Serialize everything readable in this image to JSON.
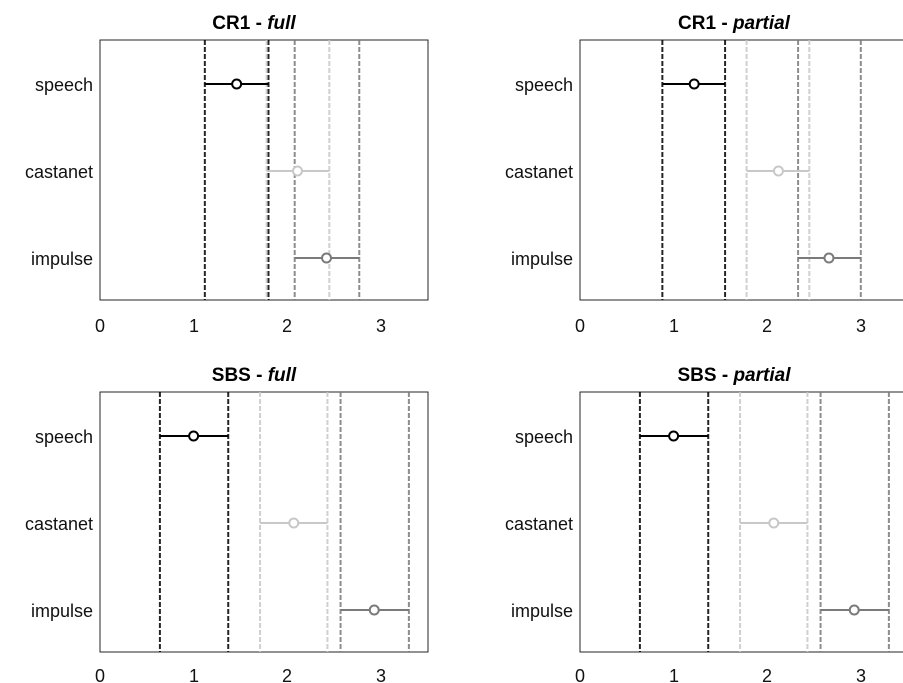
{
  "chart_data": [
    {
      "type": "errorbar",
      "title": {
        "prefix": "CR1 - ",
        "italic": "full"
      },
      "categories": [
        "speech",
        "castanet",
        "impulse"
      ],
      "series": [
        {
          "category": "speech",
          "mean": 1.46,
          "lower": 1.12,
          "upper": 1.8,
          "color": "#000000"
        },
        {
          "category": "castanet",
          "mean": 2.11,
          "lower": 1.78,
          "upper": 2.45,
          "color": "#c8c8c8"
        },
        {
          "category": "impulse",
          "mean": 2.42,
          "lower": 2.08,
          "upper": 2.77,
          "color": "#7a7a7a"
        }
      ],
      "xlim": [
        0,
        3.5
      ],
      "xticks": [
        "0",
        "1",
        "2",
        "3"
      ],
      "grid": false
    },
    {
      "type": "errorbar",
      "title": {
        "prefix": "CR1 - ",
        "italic": "partial"
      },
      "categories": [
        "speech",
        "castanet",
        "impulse"
      ],
      "series": [
        {
          "category": "speech",
          "mean": 1.22,
          "lower": 0.88,
          "upper": 1.55,
          "color": "#000000"
        },
        {
          "category": "castanet",
          "mean": 2.12,
          "lower": 1.78,
          "upper": 2.45,
          "color": "#c8c8c8"
        },
        {
          "category": "impulse",
          "mean": 2.66,
          "lower": 2.33,
          "upper": 3.0,
          "color": "#7a7a7a"
        }
      ],
      "xlim": [
        0,
        3.5
      ],
      "xticks": [
        "0",
        "1",
        "2",
        "3"
      ],
      "grid": false
    },
    {
      "type": "errorbar",
      "title": {
        "prefix": "SBS - ",
        "italic": "full"
      },
      "categories": [
        "speech",
        "castanet",
        "impulse"
      ],
      "series": [
        {
          "category": "speech",
          "mean": 1.0,
          "lower": 0.64,
          "upper": 1.37,
          "color": "#000000"
        },
        {
          "category": "castanet",
          "mean": 2.07,
          "lower": 1.71,
          "upper": 2.43,
          "color": "#c8c8c8"
        },
        {
          "category": "impulse",
          "mean": 2.93,
          "lower": 2.57,
          "upper": 3.3,
          "color": "#7a7a7a"
        }
      ],
      "xlim": [
        0,
        3.5
      ],
      "xticks": [
        "0",
        "1",
        "2",
        "3"
      ],
      "grid": false
    },
    {
      "type": "errorbar",
      "title": {
        "prefix": "SBS - ",
        "italic": "partial"
      },
      "categories": [
        "speech",
        "castanet",
        "impulse"
      ],
      "series": [
        {
          "category": "speech",
          "mean": 1.0,
          "lower": 0.64,
          "upper": 1.37,
          "color": "#000000"
        },
        {
          "category": "castanet",
          "mean": 2.07,
          "lower": 1.71,
          "upper": 2.43,
          "color": "#c8c8c8"
        },
        {
          "category": "impulse",
          "mean": 2.93,
          "lower": 2.57,
          "upper": 3.3,
          "color": "#7a7a7a"
        }
      ],
      "xlim": [
        0,
        3.5
      ],
      "xticks": [
        "0",
        "1",
        "2",
        "3"
      ],
      "grid": false
    }
  ]
}
